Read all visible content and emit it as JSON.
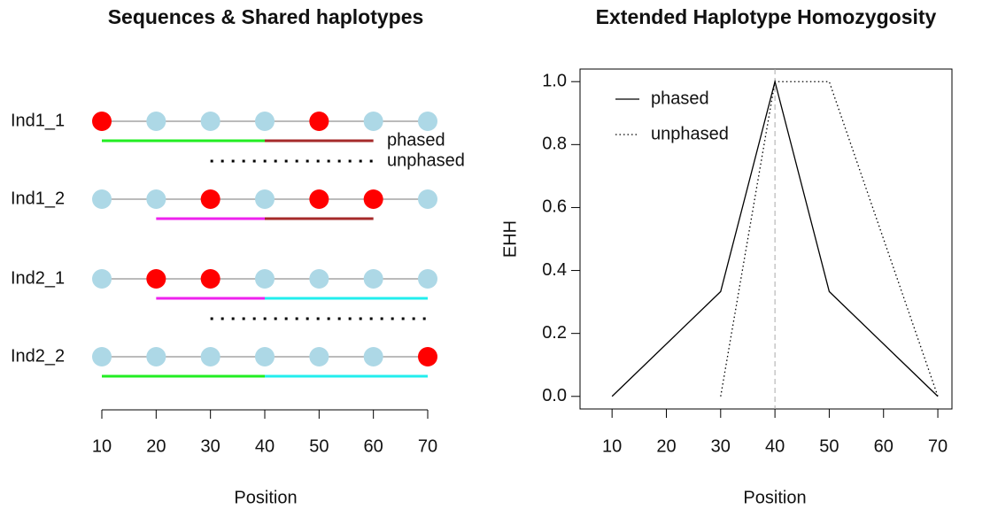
{
  "chart_data": [
    {
      "type": "haplotype",
      "title": "Sequences & Shared haplotypes",
      "xlabel": "Position",
      "x": [
        10,
        20,
        30,
        40,
        50,
        60,
        70
      ],
      "xlim": [
        10,
        70
      ],
      "xticks": [
        10,
        20,
        30,
        40,
        50,
        60,
        70
      ],
      "allele_colors": [
        "#add8e6",
        "#ff0000"
      ],
      "legend": [
        "phased",
        "unphased"
      ],
      "rows": [
        {
          "name": "Ind1_1",
          "alleles": [
            1,
            0,
            0,
            0,
            1,
            0,
            0
          ],
          "segments": [
            {
              "start": 10,
              "end": 40,
              "color": "#22ee22"
            },
            {
              "start": 40,
              "end": 60,
              "color": "#a52a2a"
            }
          ],
          "unphased": {
            "start": 30,
            "end": 60
          }
        },
        {
          "name": "Ind1_2",
          "alleles": [
            0,
            0,
            1,
            0,
            1,
            1,
            0
          ],
          "segments": [
            {
              "start": 20,
              "end": 40,
              "color": "#ee22ee"
            },
            {
              "start": 40,
              "end": 60,
              "color": "#a52a2a"
            }
          ]
        },
        {
          "name": "Ind2_1",
          "alleles": [
            0,
            1,
            1,
            0,
            0,
            0,
            0
          ],
          "segments": [
            {
              "start": 20,
              "end": 40,
              "color": "#ee22ee"
            },
            {
              "start": 40,
              "end": 70,
              "color": "#22eeee"
            }
          ],
          "unphased": {
            "start": 30,
            "end": 70
          }
        },
        {
          "name": "Ind2_2",
          "alleles": [
            0,
            0,
            0,
            0,
            0,
            0,
            1
          ],
          "segments": [
            {
              "start": 10,
              "end": 40,
              "color": "#22ee22"
            },
            {
              "start": 40,
              "end": 70,
              "color": "#22eeee"
            }
          ]
        }
      ]
    },
    {
      "type": "line",
      "title": "Extended Haplotype Homozygosity",
      "xlabel": "Position",
      "ylabel": "EHH",
      "xlim": [
        4.1,
        72.6
      ],
      "xticks": [
        10,
        20,
        30,
        40,
        50,
        60,
        70
      ],
      "ylim": [
        -0.04,
        1.04
      ],
      "yticks": [
        {
          "value": 0,
          "label": "0.0"
        },
        {
          "value": 0.2,
          "label": "0.2"
        },
        {
          "value": 0.4,
          "label": "0.4"
        },
        {
          "value": 0.6,
          "label": "0.6"
        },
        {
          "value": 0.8,
          "label": "0.8"
        },
        {
          "value": 1,
          "label": "1.0"
        }
      ],
      "vline": 40,
      "legend_position": "topleft",
      "series": [
        {
          "name": "phased",
          "color": "#000000",
          "dash": "solid",
          "x": [
            10,
            30,
            40,
            50,
            70
          ],
          "values": [
            0,
            0.333,
            1,
            0.333,
            0
          ]
        },
        {
          "name": "unphased",
          "color": "#000000",
          "dash": "dotted",
          "x": [
            30,
            40,
            50,
            70
          ],
          "values": [
            0,
            1,
            1,
            0
          ]
        }
      ]
    }
  ]
}
